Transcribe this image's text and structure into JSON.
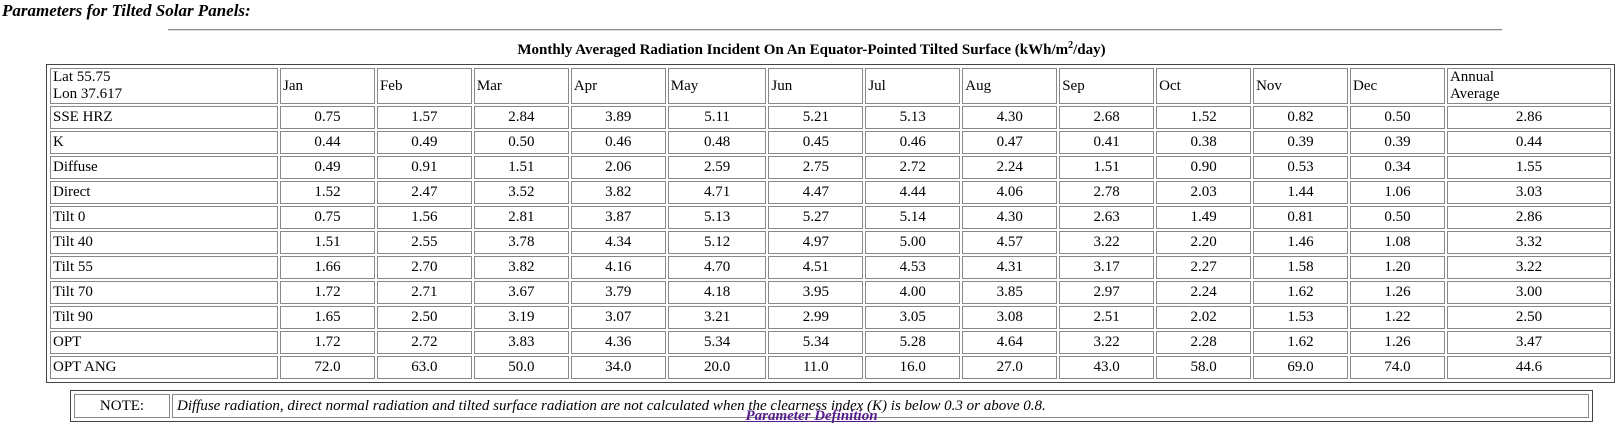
{
  "heading": "Parameters for Tilted Solar Panels:",
  "caption": {
    "prefix": "Monthly Averaged Radiation Incident On An Equator-Pointed Tilted Surface (kWh/m",
    "sup": "2",
    "suffix": "/day)"
  },
  "table": {
    "corner": [
      "Lat 55.75",
      "Lon 37.617"
    ],
    "columns": [
      "Jan",
      "Feb",
      "Mar",
      "Apr",
      "May",
      "Jun",
      "Jul",
      "Aug",
      "Sep",
      "Oct",
      "Nov",
      "Dec"
    ],
    "annual": [
      "Annual",
      "Average"
    ],
    "rows": [
      {
        "label": "SSE HRZ",
        "values": [
          "0.75",
          "1.57",
          "2.84",
          "3.89",
          "5.11",
          "5.21",
          "5.13",
          "4.30",
          "2.68",
          "1.52",
          "0.82",
          "0.50",
          "2.86"
        ]
      },
      {
        "label": "K",
        "values": [
          "0.44",
          "0.49",
          "0.50",
          "0.46",
          "0.48",
          "0.45",
          "0.46",
          "0.47",
          "0.41",
          "0.38",
          "0.39",
          "0.39",
          "0.44"
        ]
      },
      {
        "label": "Diffuse",
        "values": [
          "0.49",
          "0.91",
          "1.51",
          "2.06",
          "2.59",
          "2.75",
          "2.72",
          "2.24",
          "1.51",
          "0.90",
          "0.53",
          "0.34",
          "1.55"
        ]
      },
      {
        "label": "Direct",
        "values": [
          "1.52",
          "2.47",
          "3.52",
          "3.82",
          "4.71",
          "4.47",
          "4.44",
          "4.06",
          "2.78",
          "2.03",
          "1.44",
          "1.06",
          "3.03"
        ]
      },
      {
        "label": "Tilt 0",
        "values": [
          "0.75",
          "1.56",
          "2.81",
          "3.87",
          "5.13",
          "5.27",
          "5.14",
          "4.30",
          "2.63",
          "1.49",
          "0.81",
          "0.50",
          "2.86"
        ]
      },
      {
        "label": "Tilt 40",
        "values": [
          "1.51",
          "2.55",
          "3.78",
          "4.34",
          "5.12",
          "4.97",
          "5.00",
          "4.57",
          "3.22",
          "2.20",
          "1.46",
          "1.08",
          "3.32"
        ]
      },
      {
        "label": "Tilt 55",
        "values": [
          "1.66",
          "2.70",
          "3.82",
          "4.16",
          "4.70",
          "4.51",
          "4.53",
          "4.31",
          "3.17",
          "2.27",
          "1.58",
          "1.20",
          "3.22"
        ]
      },
      {
        "label": "Tilt 70",
        "values": [
          "1.72",
          "2.71",
          "3.67",
          "3.79",
          "4.18",
          "3.95",
          "4.00",
          "3.85",
          "2.97",
          "2.24",
          "1.62",
          "1.26",
          "3.00"
        ]
      },
      {
        "label": "Tilt 90",
        "values": [
          "1.65",
          "2.50",
          "3.19",
          "3.07",
          "3.21",
          "2.99",
          "3.05",
          "3.08",
          "2.51",
          "2.02",
          "1.53",
          "1.22",
          "2.50"
        ]
      },
      {
        "label": "OPT",
        "values": [
          "1.72",
          "2.72",
          "3.83",
          "4.36",
          "5.34",
          "5.34",
          "5.28",
          "4.64",
          "3.22",
          "2.28",
          "1.62",
          "1.26",
          "3.47"
        ]
      },
      {
        "label": "OPT ANG",
        "values": [
          "72.0",
          "63.0",
          "50.0",
          "34.0",
          "20.0",
          "11.0",
          "16.0",
          "27.0",
          "43.0",
          "58.0",
          "69.0",
          "74.0",
          "44.6"
        ]
      }
    ]
  },
  "note": {
    "label": "NOTE:",
    "text": "Diffuse radiation, direct normal radiation and tilted surface radiation are not calculated when the clearness index (K) is below 0.3 or above 0.8."
  },
  "link": "Parameter Definition"
}
